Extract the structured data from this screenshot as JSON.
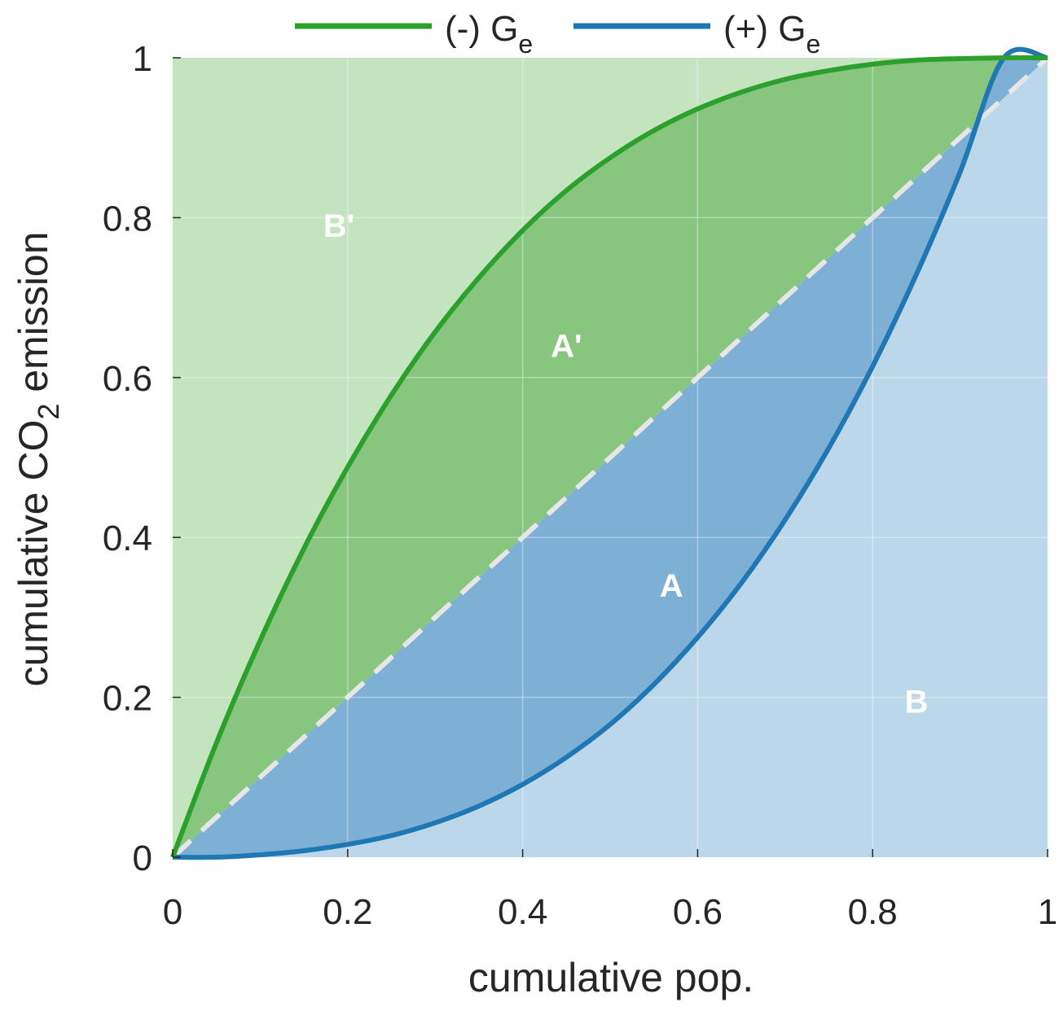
{
  "chart_data": {
    "type": "area",
    "xlabel": "cumulative pop.",
    "ylabel_parts": {
      "before": "cumulative CO",
      "subscript": "2",
      "after": " emission"
    },
    "xlim": [
      0,
      1
    ],
    "ylim": [
      0,
      1
    ],
    "x_ticks": [
      "0",
      "0.2",
      "0.4",
      "0.6",
      "0.8",
      "1"
    ],
    "y_ticks": [
      "0",
      "0.2",
      "0.4",
      "0.6",
      "0.8",
      "1"
    ],
    "grid": true,
    "legend": {
      "position": "top",
      "entries": [
        {
          "prefix": "(-) G",
          "subscript": "e",
          "color": "#2ca02c"
        },
        {
          "prefix": "(+) G",
          "subscript": "e",
          "color": "#1f77b4"
        }
      ]
    },
    "series": [
      {
        "key": "negative",
        "color": "#2ca02c",
        "x": [
          0,
          0.05,
          0.1,
          0.15,
          0.2,
          0.25,
          0.3,
          0.35,
          0.4,
          0.45,
          0.5,
          0.55,
          0.6,
          0.65,
          0.7,
          0.75,
          0.8,
          0.85,
          0.9,
          0.95,
          1
        ],
        "y": [
          0,
          0.143,
          0.271,
          0.386,
          0.488,
          0.578,
          0.657,
          0.725,
          0.784,
          0.834,
          0.875,
          0.909,
          0.936,
          0.957,
          0.973,
          0.984,
          0.992,
          0.997,
          0.999,
          1.0,
          1
        ]
      },
      {
        "key": "positive",
        "color": "#1f77b4",
        "x": [
          0,
          0.05,
          0.1,
          0.15,
          0.2,
          0.25,
          0.3,
          0.35,
          0.4,
          0.45,
          0.5,
          0.55,
          0.6,
          0.65,
          0.7,
          0.75,
          0.8,
          0.85,
          0.9,
          0.95,
          1
        ],
        "y": [
          0,
          0.0,
          0.003,
          0.008,
          0.016,
          0.027,
          0.043,
          0.064,
          0.091,
          0.125,
          0.166,
          0.216,
          0.275,
          0.343,
          0.422,
          0.512,
          0.614,
          0.729,
          0.857,
          1.0,
          1
        ]
      },
      {
        "key": "equality",
        "color": "#e6e6e6",
        "style": "dashed",
        "x": [
          0,
          1
        ],
        "y": [
          0,
          1
        ]
      }
    ],
    "regions": [
      {
        "label": "B'",
        "x": 0.19,
        "y": 0.79
      },
      {
        "label": "A'",
        "x": 0.45,
        "y": 0.64
      },
      {
        "label": "A",
        "x": 0.57,
        "y": 0.34
      },
      {
        "label": "B",
        "x": 0.85,
        "y": 0.195
      }
    ],
    "fill_colors": {
      "upper_background": "#c4e3bf",
      "between_green": "#88c680",
      "between_blue": "#7eb0d5",
      "lower_background": "#bcd6ea"
    }
  }
}
